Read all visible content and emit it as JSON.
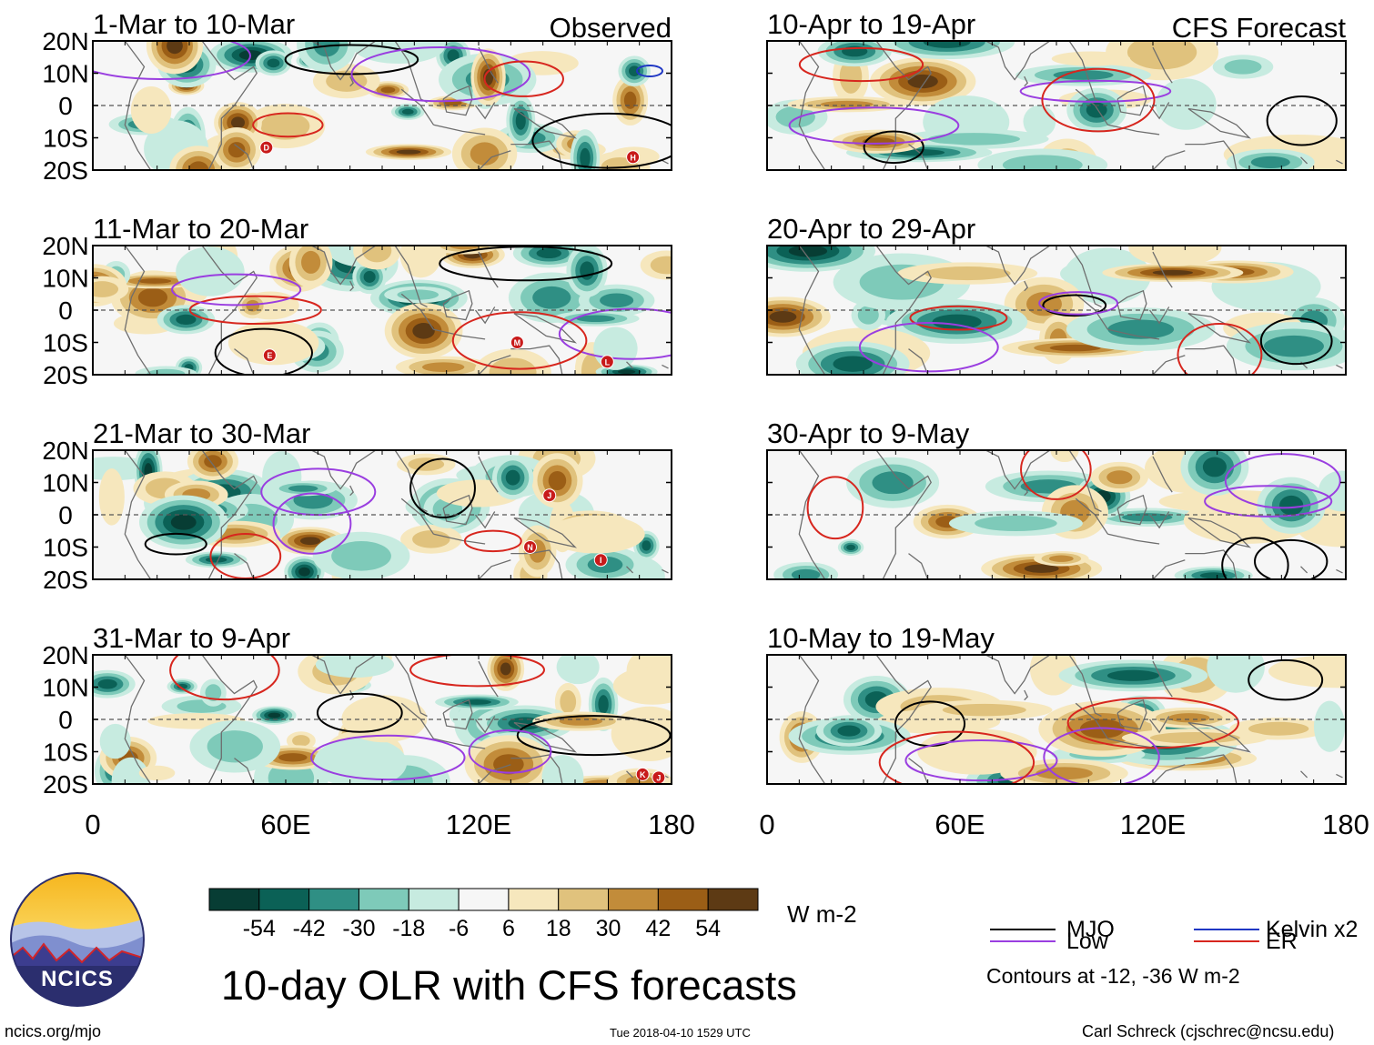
{
  "figure": {
    "title": "10-day OLR with CFS forecasts",
    "timestamp": "Tue 2018-04-10 1529 UTC",
    "website": "ncics.org/mjo",
    "credit": "Carl Schreck (cjschrec@ncsu.edu)",
    "logo_text": "NCICS"
  },
  "colorbar": {
    "units": "W m-2",
    "tick_labels": [
      "-54",
      "-42",
      "-30",
      "-18",
      "-6",
      "6",
      "18",
      "30",
      "42",
      "54"
    ],
    "colors": [
      "#073d34",
      "#0b6156",
      "#2f8f84",
      "#7ecab9",
      "#c7ebe0",
      "#f6f6f6",
      "#f6e7bd",
      "#e0c27d",
      "#c28c3a",
      "#9b5e16",
      "#5d3a14"
    ]
  },
  "legend": {
    "items": [
      {
        "label": "MJO",
        "color": "#000000"
      },
      {
        "label": "Kelvin x2",
        "color": "#1f37c4"
      },
      {
        "label": "Low",
        "color": "#9a3ee0"
      },
      {
        "label": "ER",
        "color": "#d7261e"
      }
    ],
    "contour_note": "Contours at -12, -36 W m-2"
  },
  "chart_data": [
    {
      "type": "heatmap",
      "period": "1-Mar to 10-Mar",
      "source": "Observed",
      "column": "observed",
      "row": 0,
      "cyclones": [
        {
          "label": "D",
          "lon": 54,
          "lat": -13
        },
        {
          "label": "H",
          "lon": 168,
          "lat": -16
        }
      ]
    },
    {
      "type": "heatmap",
      "period": "11-Mar to 20-Mar",
      "source": "",
      "column": "observed",
      "row": 1,
      "cyclones": [
        {
          "label": "E",
          "lon": 55,
          "lat": -14
        },
        {
          "label": "M",
          "lon": 132,
          "lat": -10
        },
        {
          "label": "L",
          "lon": 160,
          "lat": -16
        }
      ]
    },
    {
      "type": "heatmap",
      "period": "21-Mar to 30-Mar",
      "source": "",
      "column": "observed",
      "row": 2,
      "cyclones": [
        {
          "label": "J",
          "lon": 142,
          "lat": 6
        },
        {
          "label": "N",
          "lon": 136,
          "lat": -10
        },
        {
          "label": "I",
          "lon": 158,
          "lat": -14
        }
      ]
    },
    {
      "type": "heatmap",
      "period": "31-Mar to 9-Apr",
      "source": "",
      "column": "observed",
      "row": 3,
      "cyclones": [
        {
          "label": "K",
          "lon": 171,
          "lat": -17
        },
        {
          "label": "J",
          "lon": 176,
          "lat": -18
        }
      ]
    },
    {
      "type": "heatmap",
      "period": "10-Apr to 19-Apr",
      "source": "CFS Forecast",
      "column": "forecast",
      "row": 0,
      "cyclones": []
    },
    {
      "type": "heatmap",
      "period": "20-Apr to 29-Apr",
      "source": "",
      "column": "forecast",
      "row": 1,
      "cyclones": []
    },
    {
      "type": "heatmap",
      "period": "30-Apr to 9-May",
      "source": "",
      "column": "forecast",
      "row": 2,
      "cyclones": []
    },
    {
      "type": "heatmap",
      "period": "10-May to 19-May",
      "source": "",
      "column": "forecast",
      "row": 3,
      "cyclones": []
    }
  ],
  "axes": {
    "x_tick_labels": [
      "0",
      "60E",
      "120E",
      "180"
    ],
    "x_range": [
      0,
      180
    ],
    "y_tick_labels": [
      "20N",
      "10N",
      "0",
      "10S",
      "20S"
    ],
    "y_range": [
      -20,
      20
    ]
  }
}
